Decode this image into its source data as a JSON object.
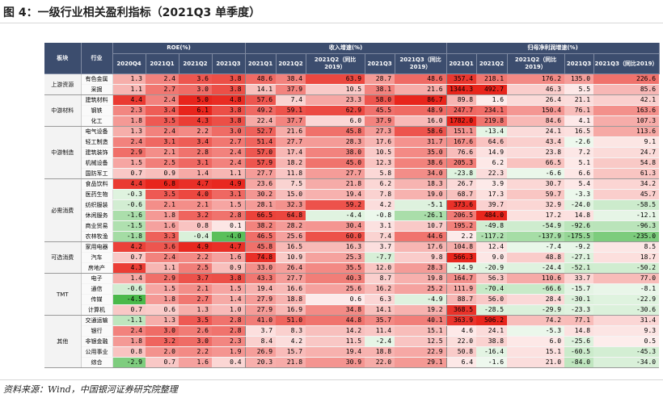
{
  "title": "图 4：一级行业相关盈利指标（2021Q3 单季度）",
  "source": "资料来源：Wind，中国银河证券研究院整理",
  "headers": {
    "block": "板块",
    "industry": "行业",
    "roe": "ROE(%)",
    "revenue": "收入增速(%)",
    "profit": "归母净利润增速(%)",
    "roe_cols": [
      "2020Q4",
      "2021Q1",
      "2021Q2",
      "2021Q3"
    ],
    "growth_cols": [
      "2021Q1",
      "2021Q2",
      "2021Q2（同比2019）",
      "2021Q3",
      "2021Q3（同比2019）"
    ]
  },
  "colors": {
    "header": "#3c4d6e",
    "positive": "#e8251c",
    "negative": "#3bb33b"
  },
  "scales": {
    "roe": 5,
    "rev": 80,
    "np": 400
  },
  "sections": [
    {
      "name": "上游资源",
      "rows": [
        {
          "name": "有色金属",
          "v": [
            "1.3",
            "2.4",
            "3.6",
            "3.8",
            "48.6",
            "38.4",
            "63.9",
            "28.7",
            "48.6",
            "357.4",
            "218.1",
            "176.2",
            "135.0",
            "226.6"
          ]
        },
        {
          "name": "采掘",
          "v": [
            "1.1",
            "2.7",
            "3.0",
            "3.8",
            "14.1",
            "37.9",
            "10.5",
            "38.1",
            "21.6",
            "1344.3",
            "492.7",
            "46.3",
            "5.5",
            "85.6"
          ]
        }
      ]
    },
    {
      "name": "中游材料",
      "rows": [
        {
          "name": "建筑材料",
          "v": [
            "4.4",
            "2.4",
            "5.0",
            "4.8",
            "57.6",
            "7.4",
            "23.3",
            "58.0",
            "86.7",
            "89.8",
            "1.6",
            "26.4",
            "21.1",
            "42.1"
          ]
        },
        {
          "name": "钢铁",
          "v": [
            "2.3",
            "3.4",
            "6.1",
            "3.8",
            "49.2",
            "59.1",
            "62.9",
            "45.5",
            "48.9",
            "247.7",
            "234.1",
            "150.4",
            "76.1",
            "163.6"
          ]
        },
        {
          "name": "化工",
          "v": [
            "1.8",
            "3.5",
            "4.3",
            "3.8",
            "22.4",
            "37.7",
            "6.0",
            "37.9",
            "16.0",
            "1782.0",
            "219.8",
            "84.6",
            "4.1",
            "107.3"
          ]
        }
      ]
    },
    {
      "name": "中游制造",
      "rows": [
        {
          "name": "电气设备",
          "v": [
            "1.3",
            "2.4",
            "2.2",
            "3.0",
            "52.7",
            "21.6",
            "45.8",
            "27.3",
            "58.6",
            "151.1",
            "-13.4",
            "24.1",
            "16.5",
            "113.6"
          ]
        },
        {
          "name": "轻工制造",
          "v": [
            "2.4",
            "3.1",
            "3.4",
            "2.7",
            "51.4",
            "27.7",
            "28.3",
            "17.6",
            "31.7",
            "167.6",
            "64.6",
            "43.4",
            "-2.6",
            "9.1"
          ]
        },
        {
          "name": "建筑装饰",
          "v": [
            "2.9",
            "2.1",
            "2.8",
            "2.4",
            "57.0",
            "17.4",
            "38.0",
            "10.5",
            "35.0",
            "76.6",
            "14.9",
            "23.8",
            "7.2",
            "24.7"
          ]
        },
        {
          "name": "机械设备",
          "v": [
            "1.5",
            "2.5",
            "3.1",
            "2.4",
            "57.9",
            "18.2",
            "45.0",
            "12.3",
            "38.6",
            "205.3",
            "6.2",
            "66.5",
            "5.1",
            "54.8"
          ]
        },
        {
          "name": "国防军工",
          "v": [
            "0.7",
            "0.9",
            "1.4",
            "1.1",
            "27.7",
            "11.8",
            "27.7",
            "5.8",
            "34.0",
            "-23.8",
            "22.3",
            "-6.6",
            "6.6",
            "61.3"
          ]
        }
      ]
    },
    {
      "name": "必需消费",
      "rows": [
        {
          "name": "食品饮料",
          "v": [
            "4.4",
            "6.8",
            "4.7",
            "4.9",
            "23.6",
            "7.5",
            "21.8",
            "6.2",
            "18.3",
            "26.7",
            "3.9",
            "30.7",
            "5.4",
            "34.2"
          ]
        },
        {
          "name": "医药生物",
          "v": [
            "-0.3",
            "3.5",
            "4.0",
            "3.1",
            "30.2",
            "15.0",
            "19.4",
            "7.8",
            "19.0",
            "68.7",
            "17.3",
            "59.7",
            "-3.3",
            "45.7"
          ]
        },
        {
          "name": "纺织服装",
          "v": [
            "-0.6",
            "2.1",
            "2.1",
            "1.5",
            "28.1",
            "32.3",
            "59.2",
            "4.2",
            "-5.1",
            "373.6",
            "39.7",
            "32.9",
            "-24.0",
            "-58.5"
          ]
        },
        {
          "name": "休闲服务",
          "v": [
            "-1.6",
            "1.8",
            "3.2",
            "2.8",
            "66.5",
            "64.8",
            "-4.4",
            "-0.8",
            "-26.1",
            "206.5",
            "484.0",
            "17.2",
            "14.8",
            "-12.1"
          ]
        },
        {
          "name": "商业贸易",
          "v": [
            "-1.5",
            "1.6",
            "0.8",
            "0.1",
            "38.2",
            "28.2",
            "30.4",
            "3.1",
            "10.7",
            "195.2",
            "-49.8",
            "-54.9",
            "-92.6",
            "-96.3"
          ]
        },
        {
          "name": "农林牧渔",
          "v": [
            "-1.8",
            "3.3",
            "-0.4",
            "-4.0",
            "46.5",
            "25.6",
            "60.0",
            "7.4",
            "44.6",
            "2.2",
            "-117.2",
            "-137.9",
            "-175.5",
            "-235.0"
          ]
        }
      ]
    },
    {
      "name": "可选消费",
      "rows": [
        {
          "name": "家用电器",
          "v": [
            "4.2",
            "3.6",
            "4.9",
            "4.7",
            "45.8",
            "16.5",
            "16.3",
            "3.7",
            "17.6",
            "104.8",
            "12.4",
            "-7.4",
            "-9.2",
            "8.5"
          ]
        },
        {
          "name": "汽车",
          "v": [
            "0.7",
            "2.4",
            "2.2",
            "1.6",
            "74.8",
            "10.9",
            "25.3",
            "-7.7",
            "9.8",
            "566.3",
            "9.0",
            "48.8",
            "-27.1",
            "18.7"
          ]
        },
        {
          "name": "房地产",
          "v": [
            "4.3",
            "1.1",
            "2.5",
            "0.9",
            "33.0",
            "26.4",
            "35.5",
            "12.0",
            "28.3",
            "-14.9",
            "-20.9",
            "-24.4",
            "-52.1",
            "-50.2"
          ]
        }
      ]
    },
    {
      "name": "TMT",
      "rows": [
        {
          "name": "电子",
          "v": [
            "1.4",
            "2.9",
            "3.7",
            "3.8",
            "43.3",
            "27.7",
            "40.3",
            "8.7",
            "19.8",
            "164.7",
            "56.3",
            "110.6",
            "33.7",
            "77.0"
          ]
        },
        {
          "name": "通信",
          "v": [
            "-0.6",
            "1.5",
            "2.1",
            "1.5",
            "19.4",
            "16.6",
            "25.6",
            "16.2",
            "25.2",
            "111.9",
            "-70.4",
            "-66.6",
            "-15.7",
            "-8.1"
          ]
        },
        {
          "name": "传媒",
          "v": [
            "-4.5",
            "1.8",
            "2.7",
            "1.4",
            "27.9",
            "18.8",
            "0.6",
            "6.3",
            "-4.9",
            "88.7",
            "56.0",
            "28.4",
            "-30.1",
            "-22.9"
          ]
        },
        {
          "name": "计算机",
          "v": [
            "0.7",
            "0.6",
            "1.3",
            "1.0",
            "27.9",
            "16.9",
            "34.8",
            "14.1",
            "19.2",
            "368.5",
            "-28.5",
            "-29.9",
            "-23.3",
            "-30.6"
          ]
        }
      ]
    },
    {
      "name": "其他",
      "rows": [
        {
          "name": "交通运输",
          "v": [
            "-1.1",
            "1.3",
            "3.5",
            "2.8",
            "41.0",
            "51.0",
            "44.8",
            "35.7",
            "40.1",
            "363.9",
            "506.2",
            "74.2",
            "77.1",
            "31.4"
          ]
        },
        {
          "name": "银行",
          "v": [
            "2.4",
            "3.0",
            "2.6",
            "2.8",
            "3.7",
            "8.3",
            "14.2",
            "11.4",
            "15.1",
            "4.6",
            "24.1",
            "-5.3",
            "14.8",
            "9.3"
          ]
        },
        {
          "name": "非银金融",
          "v": [
            "1.8",
            "3.2",
            "3.0",
            "2.3",
            "8.4",
            "4.2",
            "11.5",
            "-2.4",
            "12.5",
            "22.0",
            "38.8",
            "6.0",
            "-25.6",
            "0.5"
          ]
        },
        {
          "name": "公用事业",
          "v": [
            "0.8",
            "2.0",
            "2.2",
            "1.9",
            "26.9",
            "15.7",
            "19.4",
            "18.8",
            "22.9",
            "50.8",
            "-16.4",
            "15.1",
            "-60.5",
            "-45.3"
          ]
        },
        {
          "name": "综合",
          "v": [
            "-2.9",
            "0.7",
            "1.6",
            "0.4",
            "20.3",
            "21.8",
            "30.9",
            "22.0",
            "29.1",
            "6.4",
            "-1.6",
            "21.0",
            "-84.0",
            "-34.0"
          ]
        }
      ]
    }
  ]
}
